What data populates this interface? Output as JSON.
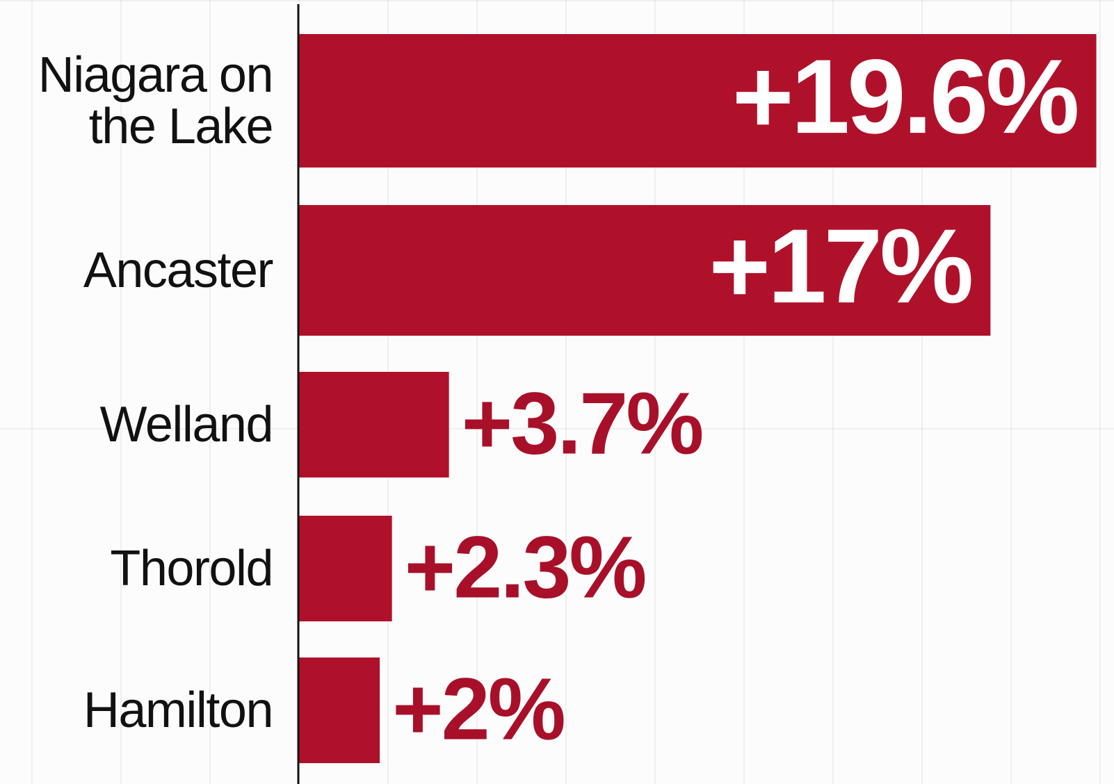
{
  "chart_data": {
    "type": "barh",
    "categories": [
      "Niagara on the Lake",
      "Ancaster",
      "Welland",
      "Thorold",
      "Hamilton"
    ],
    "values": [
      19.6,
      17,
      3.7,
      2.3,
      2
    ],
    "value_labels": [
      "+19.6%",
      "+17%",
      "+3.7%",
      "+2.3%",
      "+2%"
    ],
    "color": "#b0112a",
    "xlim": [
      0,
      20
    ]
  }
}
